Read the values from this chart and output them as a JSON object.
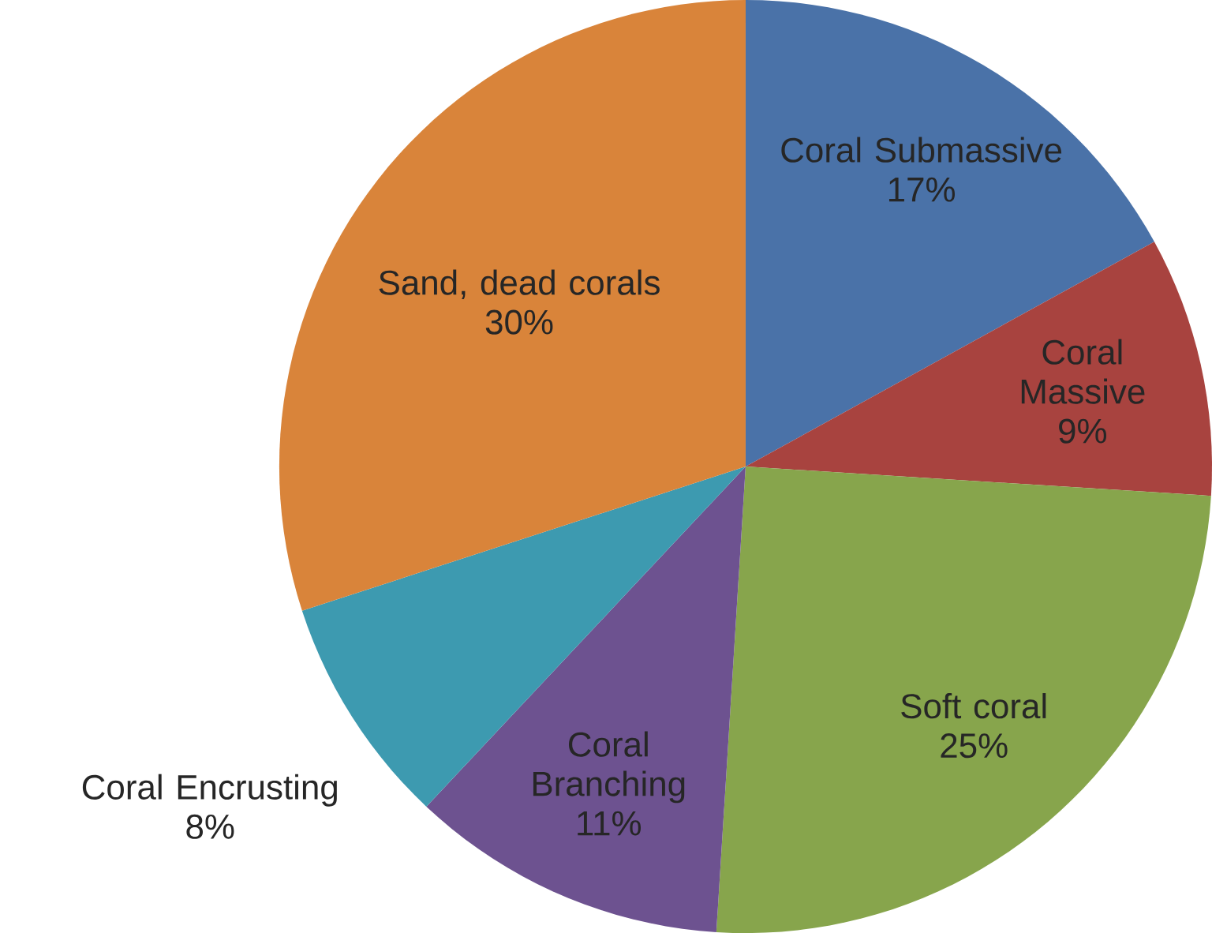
{
  "chart_data": {
    "type": "pie",
    "categories": [
      "Coral Submassive",
      "Coral Massive",
      "Soft coral",
      "Coral Branching",
      "Coral Encrusting",
      "Sand, dead corals"
    ],
    "values": [
      17,
      9,
      25,
      11,
      8,
      30
    ],
    "value_labels": [
      "17%",
      "9%",
      "25%",
      "11%",
      "8%",
      "30%"
    ],
    "colors": [
      "#4a72a8",
      "#a8433f",
      "#87a54c",
      "#6d5290",
      "#3d9ab0",
      "#d9843a"
    ]
  }
}
